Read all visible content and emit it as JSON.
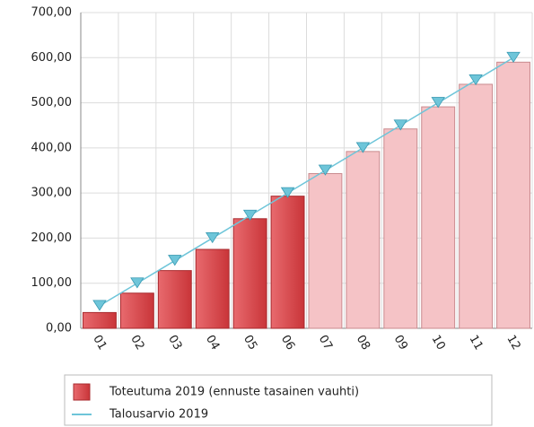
{
  "chart_data": {
    "type": "bar",
    "categories": [
      "01",
      "02",
      "03",
      "04",
      "05",
      "06",
      "07",
      "08",
      "09",
      "10",
      "11",
      "12"
    ],
    "series": [
      {
        "name": "Toteutuma 2019 (ennuste tasainen vauhti)",
        "type": "bar",
        "color": "#d9474c",
        "colors": [
          "#d9474c",
          "#d9474c",
          "#d9474c",
          "#d9474c",
          "#d9474c",
          "#d9474c",
          "#f5c3c6",
          "#f5c3c6",
          "#f5c3c6",
          "#f5c3c6",
          "#f5c3c6",
          "#f5c3c6"
        ],
        "values": [
          35,
          78,
          128,
          175,
          243,
          293,
          343,
          392,
          442,
          491,
          541,
          590
        ]
      },
      {
        "name": "Talousarvio 2019",
        "type": "line",
        "color": "#6ec5d9",
        "values": [
          50,
          100,
          150,
          200,
          250,
          300,
          350,
          400,
          450,
          500,
          550,
          600
        ]
      }
    ],
    "ylim": [
      0,
      700
    ],
    "yticks": [
      {
        "value": 0,
        "label": "0,00"
      },
      {
        "value": 100,
        "label": "100,00"
      },
      {
        "value": 200,
        "label": "200,00"
      },
      {
        "value": 300,
        "label": "300,00"
      },
      {
        "value": 400,
        "label": "400,00"
      },
      {
        "value": 500,
        "label": "500,00"
      },
      {
        "value": 600,
        "label": "600,00"
      },
      {
        "value": 700,
        "label": "700,00"
      }
    ],
    "grid": true
  }
}
